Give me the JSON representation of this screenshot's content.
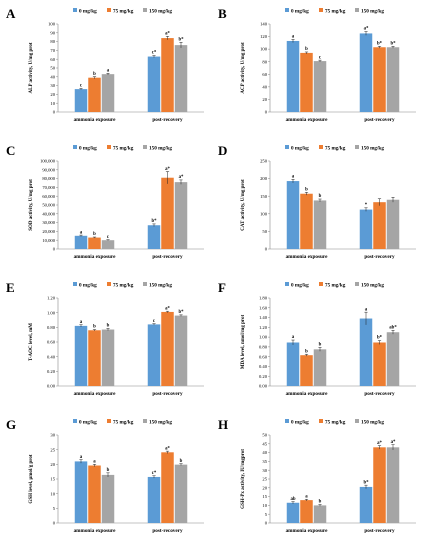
{
  "colors": {
    "s0": "#5B9BD5",
    "s1": "#ED7D31",
    "s2": "#A5A5A5",
    "axis": "#888888",
    "error": "#222222"
  },
  "chart_data": [
    {
      "type": "bar",
      "panel_label": "A",
      "categories": [
        "ammonia exposure",
        "post-recovery"
      ],
      "series": [
        {
          "name": "0 mg/kg",
          "values": [
            26,
            63
          ],
          "errors": [
            0.8,
            1.2
          ],
          "letters": [
            "c",
            "c*"
          ]
        },
        {
          "name": "75 mg/kg",
          "values": [
            39,
            84
          ],
          "errors": [
            1.2,
            2.0
          ],
          "letters": [
            "b",
            "a*"
          ]
        },
        {
          "name": "150 mg/kg",
          "values": [
            43,
            76
          ],
          "errors": [
            1.0,
            3.2
          ],
          "letters": [
            "a",
            "b*"
          ]
        }
      ],
      "ylabel": "ALP activity, U/mg prot",
      "ylim": [
        0,
        100
      ],
      "yticks": [
        0,
        10,
        20,
        30,
        40,
        50,
        60,
        70,
        80,
        90,
        100
      ],
      "ytick_labels": [
        "0",
        "10",
        "20",
        "30",
        "40",
        "50",
        "60",
        "70",
        "80",
        "90",
        "100"
      ],
      "legend": "top"
    },
    {
      "type": "bar",
      "panel_label": "B",
      "categories": [
        "ammonia exposure",
        "post-recovery"
      ],
      "series": [
        {
          "name": "0 mg/kg",
          "values": [
            113,
            125
          ],
          "errors": [
            2.5,
            3.0
          ],
          "letters": [
            "a",
            "a*"
          ]
        },
        {
          "name": "75 mg/kg",
          "values": [
            94,
            103
          ],
          "errors": [
            1.5,
            1.5
          ],
          "letters": [
            "b",
            "b*"
          ]
        },
        {
          "name": "150 mg/kg",
          "values": [
            81,
            103
          ],
          "errors": [
            1.5,
            1.5
          ],
          "letters": [
            "c",
            "b*"
          ]
        }
      ],
      "ylabel": "ACP activity, U/mg prot",
      "ylim": [
        0,
        140
      ],
      "yticks": [
        0,
        20,
        40,
        60,
        80,
        100,
        120,
        140
      ],
      "ytick_labels": [
        "0",
        "20",
        "40",
        "60",
        "80",
        "100",
        "120",
        "140"
      ],
      "legend": "top"
    },
    {
      "type": "bar",
      "panel_label": "C",
      "categories": [
        "ammonia exposure",
        "post-recovery"
      ],
      "series": [
        {
          "name": "0 mg/kg",
          "values": [
            15000,
            27000
          ],
          "errors": [
            800,
            1500
          ],
          "letters": [
            "a",
            "b*"
          ]
        },
        {
          "name": "75 mg/kg",
          "values": [
            13000,
            81000
          ],
          "errors": [
            600,
            7000
          ],
          "letters": [
            "b",
            "a*"
          ]
        },
        {
          "name": "150 mg/kg",
          "values": [
            10000,
            76000
          ],
          "errors": [
            600,
            2500
          ],
          "letters": [
            "c",
            "a*"
          ]
        }
      ],
      "ylabel": "SOD activity, U/mg prot",
      "ylim": [
        0,
        100000
      ],
      "yticks": [
        0,
        10000,
        20000,
        30000,
        40000,
        50000,
        60000,
        70000,
        80000,
        90000,
        100000
      ],
      "ytick_labels": [
        "0",
        "10,000",
        "20,000",
        "30,000",
        "40,000",
        "50,000",
        "60,000",
        "70,000",
        "80,000",
        "90,000",
        "100,000"
      ],
      "legend": "top"
    },
    {
      "type": "bar",
      "panel_label": "D",
      "categories": [
        "ammonia exposure",
        "post-recovery"
      ],
      "series": [
        {
          "name": "0 mg/kg",
          "values": [
            193,
            112
          ],
          "errors": [
            5,
            5
          ],
          "letters": [
            "a",
            "*"
          ]
        },
        {
          "name": "75 mg/kg",
          "values": [
            157,
            133
          ],
          "errors": [
            4,
            10
          ],
          "letters": [
            "b",
            ""
          ]
        },
        {
          "name": "150 mg/kg",
          "values": [
            138,
            140
          ],
          "errors": [
            4,
            7
          ],
          "letters": [
            "b",
            ""
          ]
        }
      ],
      "ylabel": "CAT activity, U/mg prot",
      "ylim": [
        0,
        250
      ],
      "yticks": [
        0,
        50,
        100,
        150,
        200,
        250
      ],
      "ytick_labels": [
        "0",
        "50",
        "100",
        "150",
        "200",
        "250"
      ],
      "legend": "top"
    },
    {
      "type": "bar",
      "panel_label": "E",
      "categories": [
        "ammonia exposure",
        "post-recovery"
      ],
      "series": [
        {
          "name": "0 mg/kg",
          "values": [
            0.82,
            0.84
          ],
          "errors": [
            0.015,
            0.01
          ],
          "letters": [
            "a",
            "c"
          ]
        },
        {
          "name": "75 mg/kg",
          "values": [
            0.76,
            1.01
          ],
          "errors": [
            0.01,
            0.01
          ],
          "letters": [
            "b",
            "a*"
          ]
        },
        {
          "name": "150 mg/kg",
          "values": [
            0.77,
            0.96
          ],
          "errors": [
            0.015,
            0.01
          ],
          "letters": [
            "b",
            "b*"
          ]
        }
      ],
      "ylabel": "T-AOC level, mM",
      "ylim": [
        0,
        1.2
      ],
      "yticks": [
        0,
        0.2,
        0.4,
        0.6,
        0.8,
        1.0,
        1.2
      ],
      "ytick_labels": [
        "0.00",
        "0.20",
        "0.40",
        "0.60",
        "0.80",
        "1.00",
        "1.20"
      ],
      "legend": "top"
    },
    {
      "type": "bar",
      "panel_label": "F",
      "categories": [
        "ammonia exposure",
        "post-recovery"
      ],
      "series": [
        {
          "name": "0 mg/kg",
          "values": [
            0.89,
            1.38
          ],
          "errors": [
            0.05,
            0.13
          ],
          "letters": [
            "a",
            "a"
          ]
        },
        {
          "name": "75 mg/kg",
          "values": [
            0.63,
            0.89
          ],
          "errors": [
            0.02,
            0.04
          ],
          "letters": [
            "b",
            "b*"
          ]
        },
        {
          "name": "150 mg/kg",
          "values": [
            0.75,
            1.1
          ],
          "errors": [
            0.04,
            0.04
          ],
          "letters": [
            "b",
            "ab*"
          ]
        }
      ],
      "ylabel": "MDA level, nmol/mg prot",
      "ylim": [
        0,
        1.8
      ],
      "yticks": [
        0,
        0.2,
        0.4,
        0.6,
        0.8,
        1.0,
        1.2,
        1.4,
        1.6,
        1.8
      ],
      "ytick_labels": [
        "0.00",
        "0.20",
        "0.40",
        "0.60",
        "0.80",
        "1.00",
        "1.20",
        "1.40",
        "1.60",
        "1.80"
      ],
      "legend": "top"
    },
    {
      "type": "bar",
      "panel_label": "G",
      "categories": [
        "ammonia exposure",
        "post-recovery"
      ],
      "series": [
        {
          "name": "0 mg/kg",
          "values": [
            21.0,
            15.7
          ],
          "errors": [
            0.6,
            0.4
          ],
          "letters": [
            "a",
            "c*"
          ]
        },
        {
          "name": "75 mg/kg",
          "values": [
            19.6,
            24.1
          ],
          "errors": [
            0.4,
            0.4
          ],
          "letters": [
            "a",
            "a*"
          ]
        },
        {
          "name": "150 mg/kg",
          "values": [
            16.4,
            19.9
          ],
          "errors": [
            0.7,
            0.3
          ],
          "letters": [
            "b",
            "b"
          ]
        }
      ],
      "ylabel": "GSH level, μmol/g prot",
      "ylim": [
        0,
        30
      ],
      "yticks": [
        0,
        5,
        10,
        15,
        20,
        25,
        30
      ],
      "ytick_labels": [
        "0",
        "5",
        "10",
        "15",
        "20",
        "25",
        "30"
      ],
      "legend": "top"
    },
    {
      "type": "bar",
      "panel_label": "H",
      "categories": [
        "ammonia exposure",
        "post-recovery"
      ],
      "series": [
        {
          "name": "0 mg/kg",
          "values": [
            11.5,
            20.5
          ],
          "errors": [
            0.6,
            1.0
          ],
          "letters": [
            "ab",
            "b*"
          ]
        },
        {
          "name": "75 mg/kg",
          "values": [
            13.0,
            43.0
          ],
          "errors": [
            0.5,
            1.0
          ],
          "letters": [
            "a",
            "a*"
          ]
        },
        {
          "name": "150 mg/kg",
          "values": [
            10.0,
            43.0
          ],
          "errors": [
            0.5,
            1.5
          ],
          "letters": [
            "b",
            "a*"
          ]
        }
      ],
      "ylabel": "GSH-Px activity, IU/mgprot",
      "ylim": [
        0,
        50
      ],
      "yticks": [
        0,
        5,
        10,
        15,
        20,
        25,
        30,
        35,
        40,
        45,
        50
      ],
      "ytick_labels": [
        "0",
        "5",
        "10",
        "15",
        "20",
        "25",
        "30",
        "35",
        "40",
        "45",
        "50"
      ],
      "legend": "top"
    }
  ]
}
